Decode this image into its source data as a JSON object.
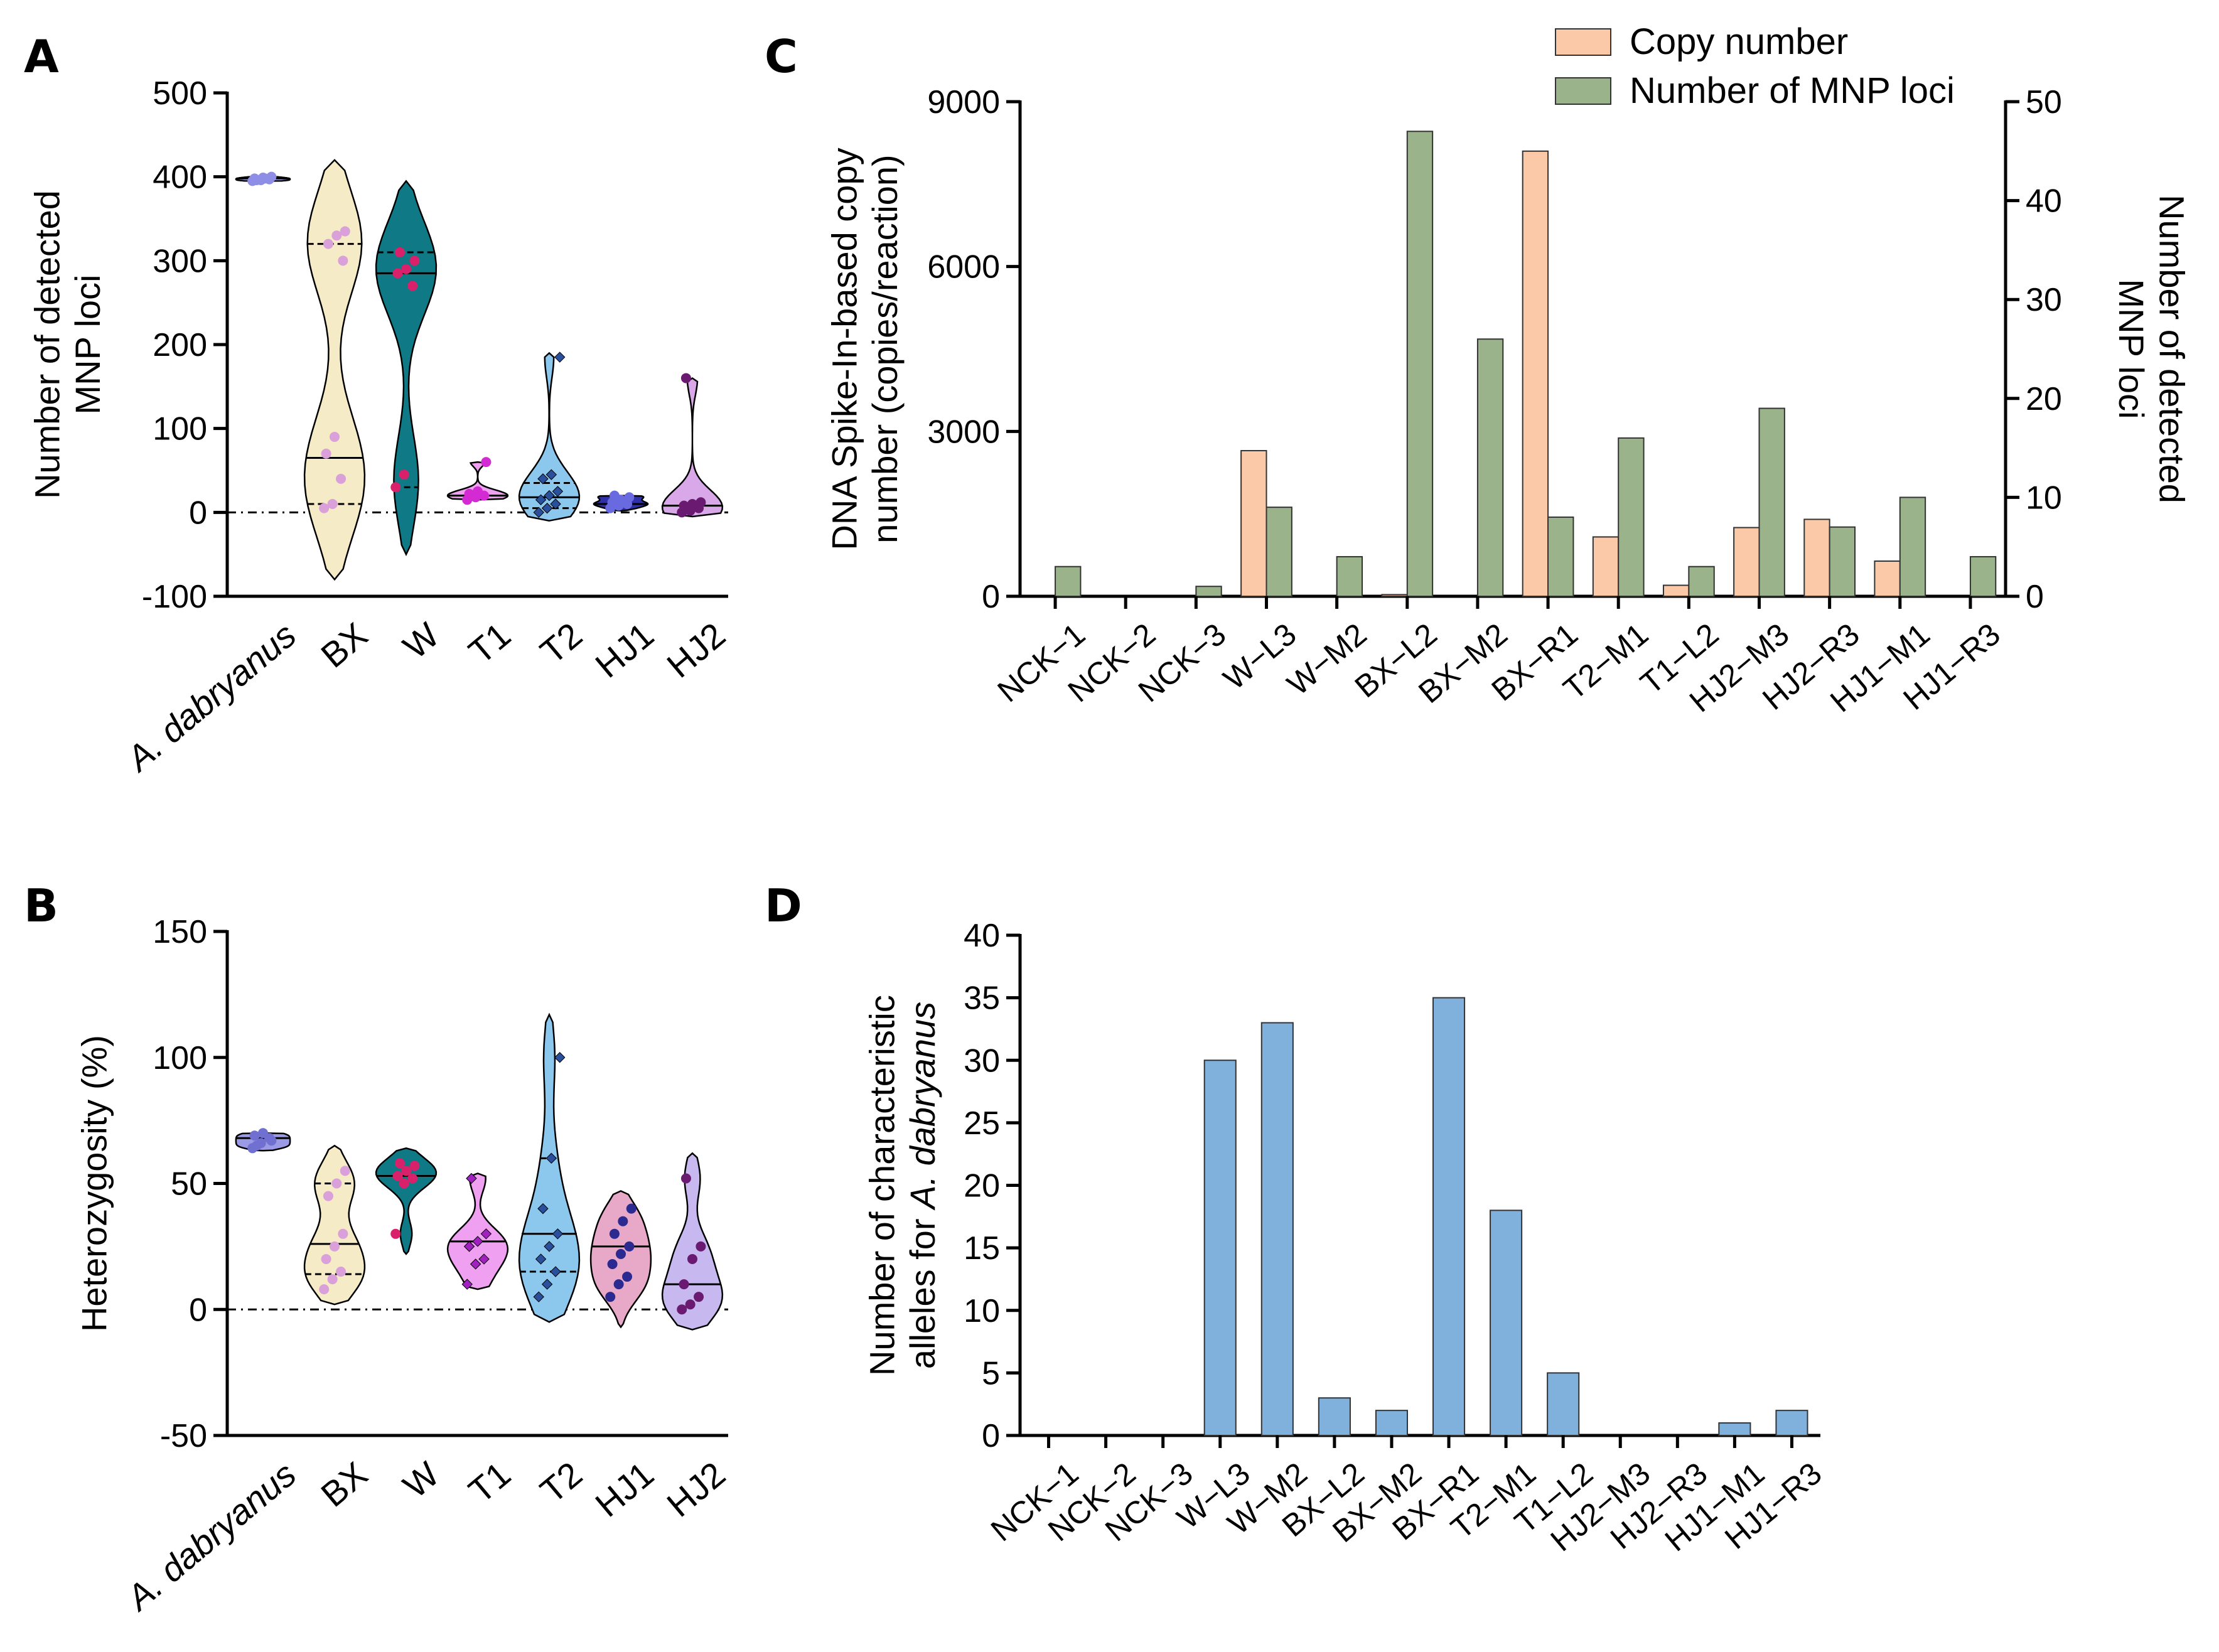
{
  "chart_data": [
    {
      "panel": "A",
      "type": "violin",
      "ylabel": [
        "Number of detected",
        "MNP loci"
      ],
      "ylim": [
        -100,
        500
      ],
      "yticks": [
        -100,
        0,
        100,
        200,
        300,
        400,
        500
      ],
      "categories": [
        "A. dabryanus",
        "BX",
        "W",
        "T1",
        "T2",
        "HJ1",
        "HJ2"
      ],
      "groups": [
        {
          "name": "A. dabryanus",
          "fill": "#b8b8f0",
          "point_color": "#8e8ee6",
          "marker": "circle",
          "min": 395,
          "max": 400,
          "quartiles": [],
          "median": 398,
          "points": [
            395,
            396,
            397,
            398,
            399,
            400,
            396,
            398
          ]
        },
        {
          "name": "BX",
          "fill": "#f5ebc6",
          "point_color": "#d9a0d9",
          "marker": "circle",
          "min": -80,
          "max": 420,
          "quartiles": [
            10,
            320
          ],
          "median": 65,
          "points": [
            5,
            10,
            40,
            70,
            90,
            300,
            320,
            330,
            335
          ]
        },
        {
          "name": "W",
          "fill": "#0f7a86",
          "point_color": "#d9206b",
          "marker": "circle",
          "min": -50,
          "max": 395,
          "quartiles": [
            30,
            310
          ],
          "median": 285,
          "points": [
            30,
            45,
            270,
            285,
            290,
            300,
            310
          ]
        },
        {
          "name": "T1",
          "fill": "#f0a0f0",
          "point_color": "#d42ad4",
          "marker": "circle",
          "min": 15,
          "max": 60,
          "quartiles": [],
          "median": 20,
          "points": [
            15,
            18,
            20,
            22,
            25,
            60
          ]
        },
        {
          "name": "T2",
          "fill": "#8cc8ee",
          "point_color": "#2a4f9c",
          "marker": "diamond",
          "min": -10,
          "max": 190,
          "quartiles": [
            5,
            35
          ],
          "median": 18,
          "points": [
            0,
            5,
            10,
            15,
            20,
            25,
            40,
            45,
            185
          ]
        },
        {
          "name": "HJ1",
          "fill": "#3030a8",
          "point_color": "#6a6ae0",
          "marker": "circle",
          "min": 2,
          "max": 20,
          "quartiles": [],
          "median": 10,
          "points": [
            5,
            8,
            10,
            12,
            15,
            18,
            20
          ]
        },
        {
          "name": "HJ2",
          "fill": "#d8a8e8",
          "point_color": "#6a1a70",
          "marker": "circle",
          "min": -5,
          "max": 160,
          "quartiles": [],
          "median": 8,
          "points": [
            0,
            2,
            5,
            8,
            10,
            12,
            160
          ]
        }
      ]
    },
    {
      "panel": "B",
      "type": "violin",
      "ylabel": [
        "Heterozygosity (%)"
      ],
      "ylim": [
        -50,
        150
      ],
      "yticks": [
        -50,
        0,
        50,
        100,
        150
      ],
      "categories": [
        "A. dabryanus",
        "BX",
        "W",
        "T1",
        "T2",
        "HJ1",
        "HJ2"
      ],
      "groups": [
        {
          "name": "A. dabryanus",
          "fill": "#9a9ae6",
          "point_color": "#7070d0",
          "marker": "circle",
          "min": 63,
          "max": 70,
          "quartiles": [],
          "median": 68,
          "points": [
            64,
            66,
            68,
            69,
            70,
            67,
            65
          ]
        },
        {
          "name": "BX",
          "fill": "#f5ebc6",
          "point_color": "#d9a0d9",
          "marker": "circle",
          "min": 2,
          "max": 65,
          "quartiles": [
            14,
            50
          ],
          "median": 26,
          "points": [
            8,
            12,
            15,
            20,
            25,
            30,
            45,
            50,
            55
          ]
        },
        {
          "name": "W",
          "fill": "#0f7a86",
          "point_color": "#d9206b",
          "marker": "circle",
          "min": 22,
          "max": 64,
          "quartiles": [],
          "median": 53,
          "points": [
            30,
            50,
            52,
            53,
            55,
            57,
            58
          ]
        },
        {
          "name": "T1",
          "fill": "#f0a0f0",
          "point_color": "#a020c0",
          "marker": "diamond",
          "min": 8,
          "max": 54,
          "quartiles": [],
          "median": 27,
          "points": [
            10,
            18,
            20,
            25,
            27,
            30,
            52
          ]
        },
        {
          "name": "T2",
          "fill": "#8cc8ee",
          "point_color": "#2a4f9c",
          "marker": "diamond",
          "min": -5,
          "max": 117,
          "quartiles": [
            15,
            60
          ],
          "median": 30,
          "points": [
            5,
            10,
            15,
            20,
            25,
            30,
            40,
            60,
            100
          ]
        },
        {
          "name": "HJ1",
          "fill": "#e8a8c8",
          "point_color": "#2a2a90",
          "marker": "circle",
          "min": -7,
          "max": 47,
          "quartiles": [],
          "median": 25,
          "points": [
            5,
            10,
            13,
            18,
            22,
            25,
            30,
            35,
            40
          ]
        },
        {
          "name": "HJ2",
          "fill": "#c8b8f0",
          "point_color": "#6a1a70",
          "marker": "circle",
          "min": -8,
          "max": 62,
          "quartiles": [],
          "median": 10,
          "points": [
            0,
            2,
            5,
            10,
            20,
            25,
            52
          ]
        }
      ]
    },
    {
      "panel": "C",
      "type": "bar",
      "ylabel_left": [
        "DNA Spike-In-based copy",
        "number (copies/reaction)"
      ],
      "ylabel_right": [
        "Number of detected",
        "MNP loci"
      ],
      "ylim_left": [
        0,
        9000
      ],
      "yticks_left": [
        0,
        3000,
        6000,
        9000
      ],
      "ylim_right": [
        0,
        50
      ],
      "yticks_right": [
        0,
        10,
        20,
        30,
        40,
        50
      ],
      "categories": [
        "NCK−1",
        "NCK−2",
        "NCK−3",
        "W−L3",
        "W−M2",
        "BX−L2",
        "BX−M2",
        "BX−R1",
        "T2−M1",
        "T1−L2",
        "HJ2−M3",
        "HJ2−R3",
        "HJ1−M1",
        "HJ1−R3"
      ],
      "series": [
        {
          "name": "Copy number",
          "axis": "left",
          "color": "#fbc8a8",
          "values": [
            0,
            0,
            0,
            2650,
            0,
            30,
            0,
            8100,
            1080,
            200,
            1250,
            1400,
            640,
            0
          ]
        },
        {
          "name": "Number of MNP loci",
          "axis": "right",
          "color": "#9bb38a",
          "values": [
            3,
            0,
            1,
            9,
            4,
            47,
            26,
            8,
            16,
            3,
            19,
            7,
            10,
            4
          ]
        }
      ],
      "legend": "top-right"
    },
    {
      "panel": "D",
      "type": "bar",
      "ylabel": [
        "Number of characteristic",
        "alleles for A. dabryanus"
      ],
      "ylim": [
        0,
        40
      ],
      "yticks": [
        0,
        5,
        10,
        15,
        20,
        25,
        30,
        35,
        40
      ],
      "categories": [
        "NCK−1",
        "NCK−2",
        "NCK−3",
        "W−L3",
        "W−M2",
        "BX−L2",
        "BX−M2",
        "BX−R1",
        "T2−M1",
        "T1−L2",
        "HJ2−M3",
        "HJ2−R3",
        "HJ1−M1",
        "HJ1−R3"
      ],
      "series": [
        {
          "name": "Number of characteristic alleles",
          "color": "#80b0dc",
          "values": [
            0,
            0,
            0,
            30,
            33,
            3,
            2,
            35,
            18,
            5,
            0,
            0,
            1,
            2
          ]
        }
      ]
    }
  ],
  "panels": {
    "A": "A",
    "B": "B",
    "C": "C",
    "D": "D"
  },
  "ylabelD_prefix": "alleles for ",
  "ylabelD_species": "A. dabryanus"
}
